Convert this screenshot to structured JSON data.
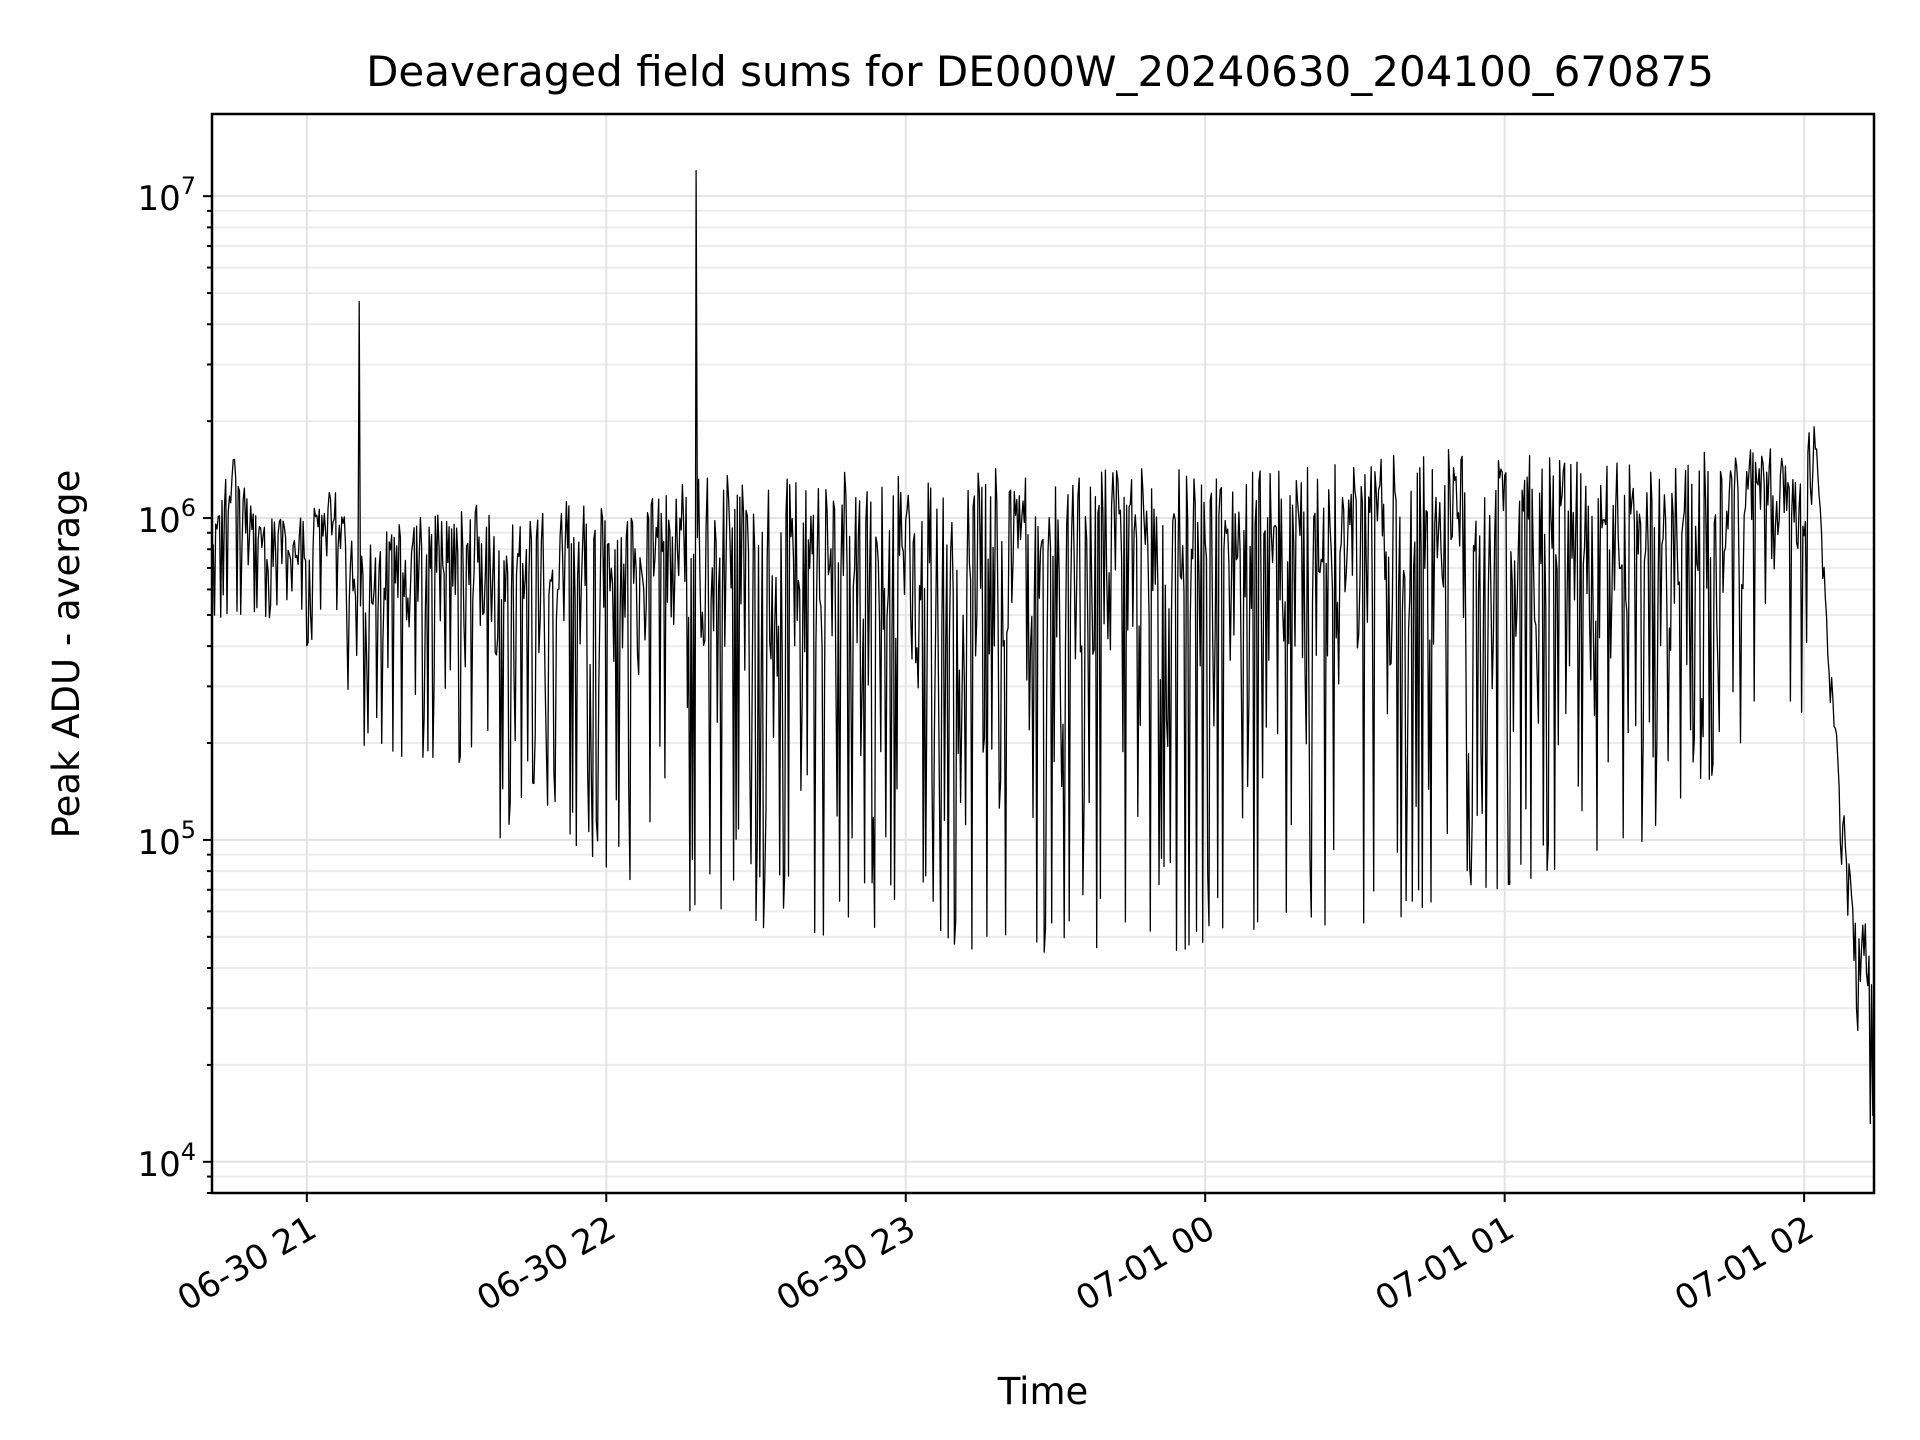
{
  "chart_data": {
    "type": "line",
    "title": "Deaveraged field sums for DE000W_20240630_204100_670875",
    "xlabel": "Time",
    "ylabel": "Peak ADU - average",
    "yscale": "log",
    "grid": true,
    "legend": "none",
    "line_color": "#000000",
    "xlim": [
      "2024-06-30 20:41",
      "2024-07-01 02:14"
    ],
    "ylim": [
      8000,
      18000000
    ],
    "x_ticks": [
      {
        "t": "2024-06-30 21:00",
        "label": "06-30 21"
      },
      {
        "t": "2024-06-30 22:00",
        "label": "06-30 22"
      },
      {
        "t": "2024-06-30 23:00",
        "label": "06-30 23"
      },
      {
        "t": "2024-07-01 00:00",
        "label": "07-01 00"
      },
      {
        "t": "2024-07-01 01:00",
        "label": "07-01 01"
      },
      {
        "t": "2024-07-01 02:00",
        "label": "07-01 02"
      }
    ],
    "y_ticks": [
      {
        "value": 10000,
        "base": "10",
        "exp": "4"
      },
      {
        "value": 100000,
        "base": "10",
        "exp": "5"
      },
      {
        "value": 1000000,
        "base": "10",
        "exp": "6"
      },
      {
        "value": 10000000,
        "base": "10",
        "exp": "7"
      }
    ],
    "series": [
      {
        "sampling_seconds": 15,
        "points": [
          {
            "t": "2024-06-30 20:41:00",
            "lo": 450000,
            "hi": 900000
          },
          {
            "t": "2024-06-30 20:45:00",
            "lo": 500000,
            "hi": 1600000
          },
          {
            "t": "2024-06-30 20:50:00",
            "lo": 500000,
            "hi": 1000000
          },
          {
            "t": "2024-06-30 20:55:00",
            "lo": 480000,
            "hi": 1000000
          },
          {
            "t": "2024-06-30 21:00:00",
            "lo": 400000,
            "hi": 1000000
          },
          {
            "t": "2024-06-30 21:05:00",
            "lo": 500000,
            "hi": 1300000
          },
          {
            "t": "2024-06-30 21:10:00",
            "lo": 200000,
            "hi": 800000
          },
          {
            "t": "2024-06-30 21:20:00",
            "lo": 180000,
            "hi": 1000000
          },
          {
            "t": "2024-06-30 21:30:00",
            "lo": 180000,
            "hi": 1100000
          },
          {
            "t": "2024-06-30 21:38:00",
            "lo": 95000,
            "hi": 1100000
          },
          {
            "t": "2024-06-30 21:45:00",
            "lo": 150000,
            "hi": 1000000
          },
          {
            "t": "2024-06-30 21:55:00",
            "lo": 90000,
            "hi": 1200000
          },
          {
            "t": "2024-06-30 22:05:00",
            "lo": 75000,
            "hi": 1100000
          },
          {
            "t": "2024-06-30 22:15:00",
            "lo": 60000,
            "hi": 1300000
          },
          {
            "t": "2024-06-30 22:30:00",
            "lo": 52000,
            "hi": 1400000
          },
          {
            "t": "2024-06-30 22:45:00",
            "lo": 50000,
            "hi": 1400000
          },
          {
            "t": "2024-06-30 23:00:00",
            "lo": 52000,
            "hi": 1350000
          },
          {
            "t": "2024-06-30 23:15:00",
            "lo": 45000,
            "hi": 1450000
          },
          {
            "t": "2024-06-30 23:30:00",
            "lo": 44000,
            "hi": 1400000
          },
          {
            "t": "2024-06-30 23:45:00",
            "lo": 40000,
            "hi": 1450000
          },
          {
            "t": "2024-07-01 00:00:00",
            "lo": 48000,
            "hi": 1450000
          },
          {
            "t": "2024-07-01 00:15:00",
            "lo": 55000,
            "hi": 1400000
          },
          {
            "t": "2024-07-01 00:30:00",
            "lo": 52000,
            "hi": 1500000
          },
          {
            "t": "2024-07-01 00:45:00",
            "lo": 60000,
            "hi": 1650000
          },
          {
            "t": "2024-07-01 01:00:00",
            "lo": 70000,
            "hi": 1600000
          },
          {
            "t": "2024-07-01 01:15:00",
            "lo": 80000,
            "hi": 1500000
          },
          {
            "t": "2024-07-01 01:30:00",
            "lo": 100000,
            "hi": 1500000
          },
          {
            "t": "2024-07-01 01:45:00",
            "lo": 180000,
            "hi": 1700000
          },
          {
            "t": "2024-07-01 02:00:00",
            "lo": 250000,
            "hi": 1600000
          },
          {
            "t": "2024-07-01 02:02:00",
            "lo": 1800000,
            "hi": 2200000
          },
          {
            "t": "2024-07-01 02:05:00",
            "lo": 300000,
            "hi": 400000
          },
          {
            "t": "2024-07-01 02:08:00",
            "lo": 60000,
            "hi": 120000
          },
          {
            "t": "2024-07-01 02:10:00",
            "lo": 15000,
            "hi": 60000
          },
          {
            "t": "2024-07-01 02:14:00",
            "lo": 12000,
            "hi": 60000
          }
        ],
        "spikes": [
          {
            "t": "2024-06-30 21:10:30",
            "value": 4700000
          },
          {
            "t": "2024-06-30 22:18:00",
            "value": 12000000
          }
        ]
      }
    ]
  }
}
